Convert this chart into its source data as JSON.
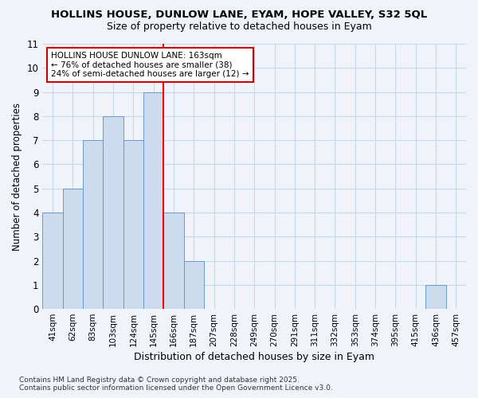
{
  "title1": "HOLLINS HOUSE, DUNLOW LANE, EYAM, HOPE VALLEY, S32 5QL",
  "title2": "Size of property relative to detached houses in Eyam",
  "xlabel": "Distribution of detached houses by size in Eyam",
  "ylabel": "Number of detached properties",
  "categories": [
    "41sqm",
    "62sqm",
    "83sqm",
    "103sqm",
    "124sqm",
    "145sqm",
    "166sqm",
    "187sqm",
    "207sqm",
    "228sqm",
    "249sqm",
    "270sqm",
    "291sqm",
    "311sqm",
    "332sqm",
    "353sqm",
    "374sqm",
    "395sqm",
    "415sqm",
    "436sqm",
    "457sqm"
  ],
  "values": [
    4,
    5,
    7,
    8,
    7,
    9,
    4,
    2,
    0,
    0,
    0,
    0,
    0,
    0,
    0,
    0,
    0,
    0,
    0,
    1,
    0
  ],
  "bar_color": "#ccdcee",
  "bar_edge_color": "#6699cc",
  "grid_color": "#c8d8e8",
  "background_color": "#f0f4fa",
  "redline_index": 6,
  "ylim": [
    0,
    11
  ],
  "yticks": [
    0,
    1,
    2,
    3,
    4,
    5,
    6,
    7,
    8,
    9,
    10,
    11
  ],
  "annotation_text": "HOLLINS HOUSE DUNLOW LANE: 163sqm\n← 76% of detached houses are smaller (38)\n24% of semi-detached houses are larger (12) →",
  "annotation_box_color": "#ffffff",
  "annotation_box_edge": "#cc0000",
  "footer": "Contains HM Land Registry data © Crown copyright and database right 2025.\nContains public sector information licensed under the Open Government Licence v3.0."
}
